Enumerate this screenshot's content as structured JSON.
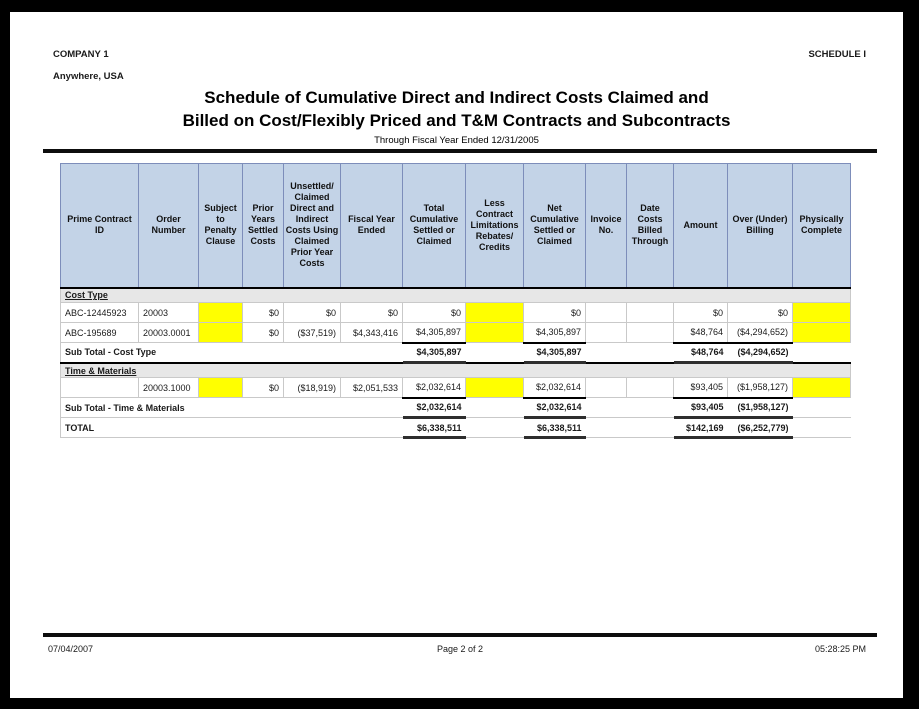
{
  "report": {
    "company": "COMPANY 1",
    "location": "Anywhere, USA",
    "schedule": "SCHEDULE I",
    "title_line1": "Schedule of Cumulative Direct and Indirect Costs Claimed and",
    "title_line2": "Billed on Cost/Flexibly Priced and T&M Contracts and Subcontracts",
    "subtitle": "Through Fiscal Year Ended 12/31/2005"
  },
  "footer": {
    "date": "07/04/2007",
    "page_label": "Page 2 of 2",
    "time": "05:28:25 PM"
  },
  "colors": {
    "header_bg": "#c3d3e7",
    "header_border": "#7d8dba",
    "section_bg": "#e7e7e7",
    "highlight": "#ffff00",
    "grid": "#c9c9c9"
  },
  "table": {
    "columns": [
      {
        "key": "prime-contract-id",
        "label": "Prime Contract ID"
      },
      {
        "key": "order-number",
        "label": "Order Number"
      },
      {
        "key": "subject-to-penalty-clause",
        "label": "Subject to Penalty Clause"
      },
      {
        "key": "prior-years-settled-costs",
        "label": "Prior Years Settled Costs"
      },
      {
        "key": "unsettled-claimed-costs",
        "label": "Unsettled/ Claimed Direct and Indirect Costs Using Claimed Prior Year Costs"
      },
      {
        "key": "fiscal-year-ended",
        "label": "Fiscal Year Ended"
      },
      {
        "key": "total-cumulative-settled-or-claimed",
        "label": "Total Cumulative Settled or Claimed"
      },
      {
        "key": "less-contract-limitations",
        "label": "Less Contract Limitations Rebates/ Credits"
      },
      {
        "key": "net-cumulative-settled-or-claimed",
        "label": "Net Cumulative Settled or Claimed"
      },
      {
        "key": "invoice-no",
        "label": "Invoice No."
      },
      {
        "key": "date-costs-billed-through",
        "label": "Date Costs Billed Through"
      },
      {
        "key": "amount",
        "label": "Amount"
      },
      {
        "key": "over-under-billing",
        "label": "Over (Under) Billing"
      },
      {
        "key": "physically-complete",
        "label": "Physically Complete"
      }
    ],
    "sections": [
      {
        "label": "Cost Type",
        "rows": [
          {
            "cells": [
              "ABC-12445923",
              "20003",
              "",
              "$0",
              "$0",
              "$0",
              "$0",
              "",
              "$0",
              "",
              "",
              "$0",
              "$0",
              ""
            ],
            "highlight": [
              2,
              7,
              13
            ]
          },
          {
            "cells": [
              "ABC-195689",
              "20003.0001",
              "",
              "$0",
              "($37,519)",
              "$4,343,416",
              "$4,305,897",
              "",
              "$4,305,897",
              "",
              "",
              "$48,764",
              "($4,294,652)",
              ""
            ],
            "highlight": [
              2,
              7,
              13
            ]
          }
        ],
        "subtotal": {
          "label": "Sub Total - Cost Type",
          "total_cumulative": "$4,305,897",
          "net_cumulative": "$4,305,897",
          "amount": "$48,764",
          "over_under": "($4,294,652)"
        }
      },
      {
        "label": "Time & Materials",
        "rows": [
          {
            "cells": [
              "",
              "20003.1000",
              "",
              "$0",
              "($18,919)",
              "$2,051,533",
              "$2,032,614",
              "",
              "$2,032,614",
              "",
              "",
              "$93,405",
              "($1,958,127)",
              ""
            ],
            "highlight": [
              2,
              7,
              13
            ]
          }
        ],
        "subtotal": {
          "label": "Sub Total - Time & Materials",
          "total_cumulative": "$2,032,614",
          "net_cumulative": "$2,032,614",
          "amount": "$93,405",
          "over_under": "($1,958,127)"
        }
      }
    ],
    "total": {
      "label": "TOTAL",
      "total_cumulative": "$6,338,511",
      "net_cumulative": "$6,338,511",
      "amount": "$142,169",
      "over_under": "($6,252,779)"
    }
  }
}
